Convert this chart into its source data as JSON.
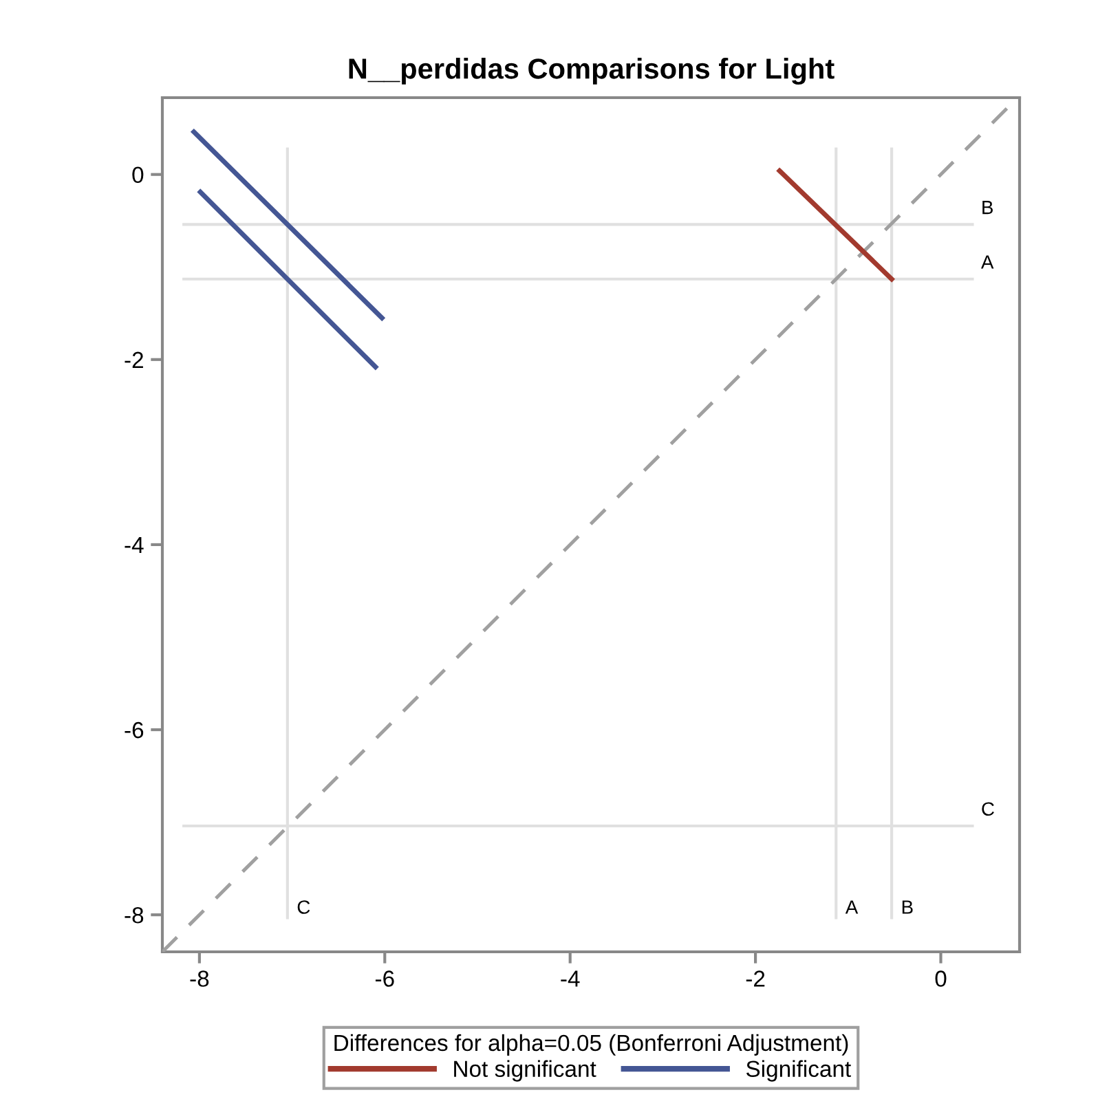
{
  "chart_data": {
    "type": "line",
    "title": "N__perdidas Comparisons for Light",
    "legend_title": "Differences for alpha=0.05 (Bonferroni Adjustment)",
    "xlim": [
      -8.4,
      0.85
    ],
    "ylim": [
      -8.4,
      0.83
    ],
    "xticks": [
      -8,
      -6,
      -4,
      -2,
      0
    ],
    "yticks": [
      -8,
      -6,
      -4,
      -2,
      0
    ],
    "grid": false,
    "legend": "bottom",
    "marker": "none",
    "series": [
      {
        "color": "#a0a0a0",
        "line_style": "dashed",
        "x": [
          -8.4,
          0.83
        ],
        "values": [
          -8.4,
          0.83
        ]
      },
      {
        "name": "Not significant",
        "color": "#a23a2e",
        "x": [
          -1.74,
          -0.53
        ],
        "values": [
          0.04,
          -1.13
        ]
      },
      {
        "name": "Significant",
        "color": "#445694",
        "x": [
          -8.06,
          -6.03
        ],
        "values": [
          0.46,
          -1.55
        ]
      },
      {
        "color": "#445694",
        "x": [
          -7.99,
          -6.1
        ],
        "values": [
          -0.19,
          -2.08
        ]
      }
    ],
    "ref_lines": [
      {
        "axis": "x",
        "value": -7.05,
        "label": "C",
        "color": "#e0e0e0"
      },
      {
        "axis": "x",
        "value": -1.13,
        "label": "A",
        "color": "#e0e0e0"
      },
      {
        "axis": "x",
        "value": -0.53,
        "label": "B",
        "color": "#e0e0e0"
      },
      {
        "axis": "y",
        "value": -0.54,
        "label": "B",
        "color": "#e0e0e0"
      },
      {
        "axis": "y",
        "value": -1.13,
        "label": "A",
        "color": "#e0e0e0"
      },
      {
        "axis": "y",
        "value": -7.04,
        "label": "C",
        "color": "#e0e0e0"
      }
    ]
  }
}
